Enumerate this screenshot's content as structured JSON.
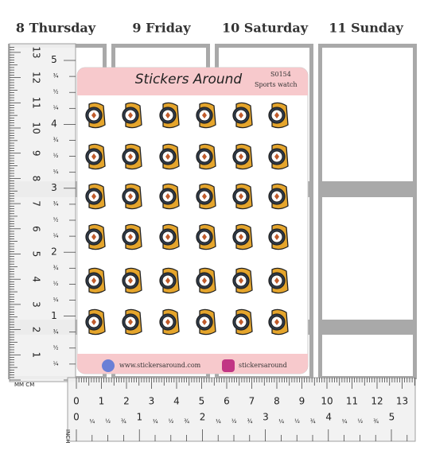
{
  "days": [
    "8 Thursday",
    "9 Friday",
    "10 Saturday",
    "11 Sunday"
  ],
  "sheet": {
    "brand": "Stickers Around",
    "code": "S0154",
    "name": "Sports watch",
    "website": "www.stickersaround.com",
    "instagram": "stickersaround"
  },
  "ruler_left": {
    "cm_labels": [
      "13",
      "12",
      "11",
      "10",
      "9",
      "8",
      "7",
      "6",
      "5",
      "4",
      "3",
      "2",
      "1"
    ],
    "inch_labels": [
      "5",
      "4",
      "3",
      "2",
      "1"
    ],
    "unit_label": "MM CM",
    "fractions": [
      "¾",
      "½",
      "¼"
    ]
  },
  "ruler_bottom": {
    "unit_label": "INCH",
    "cm_labels": [
      "0",
      "1",
      "2",
      "3",
      "4",
      "5",
      "6",
      "7",
      "8",
      "9",
      "10",
      "11",
      "12",
      "13"
    ],
    "inch_labels": [
      "0",
      "1",
      "2",
      "3",
      "4",
      "5"
    ],
    "fractions": [
      "¼",
      "½",
      "¾"
    ]
  }
}
